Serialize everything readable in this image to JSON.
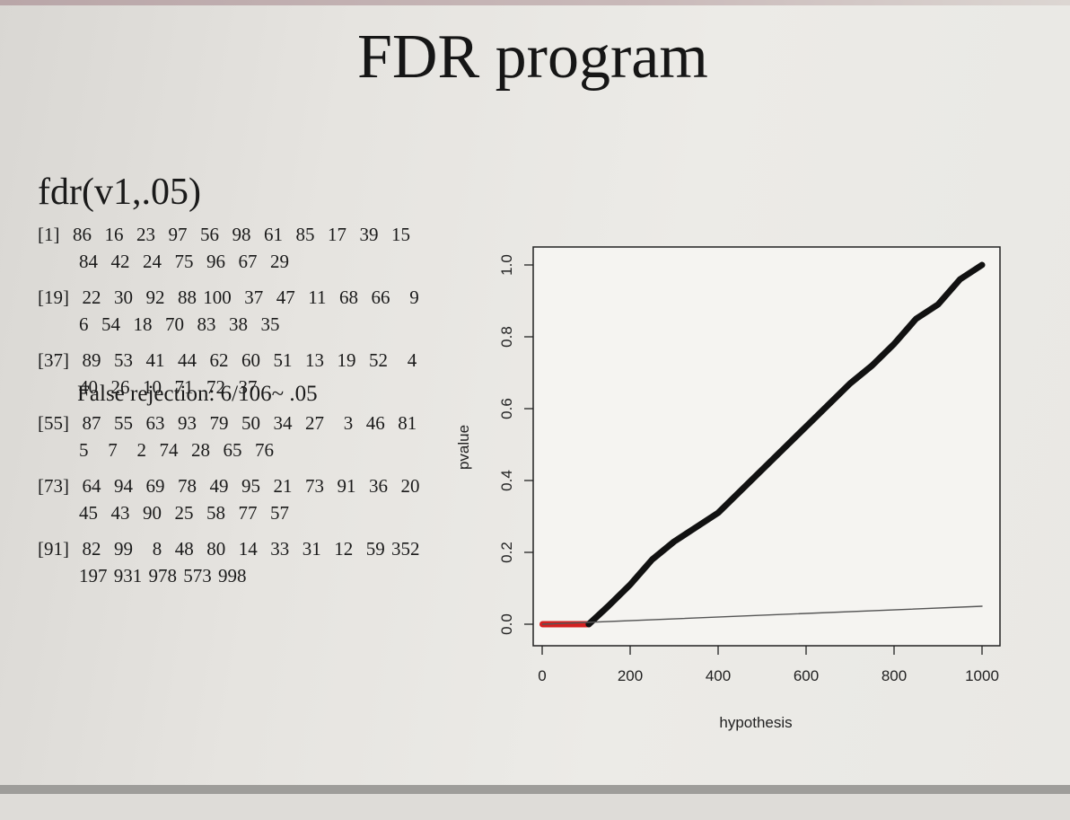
{
  "slide": {
    "title": "FDR program",
    "command": "fdr(v1,.05)",
    "output_rows": [
      {
        "line1": "[1]  86  16  23  97  56  98  61  85  17  39  15",
        "line2": "84  42  24  75  96  67  29"
      },
      {
        "line1": "[19]  22  30  92  88 100  37  47  11  68  66   9",
        "line2": "6  54  18  70  83  38  35"
      },
      {
        "line1": "[37]  89  53  41  44  62  60  51  13  19  52   4",
        "line2": "40  26  10  71  72  37"
      },
      {
        "line1": "[55]  87  55  63  93  79  50  34  27   3  46  81",
        "line2": "5   7   2  74  28  65  76"
      },
      {
        "line1": "[73]  64  94  69  78  49  95  21  73  91  36  20",
        "line2": "45  43  90  25  58  77  57"
      },
      {
        "line1": "[91]  82  99   8  48  80  14  33  31  12  59 352",
        "line2": "197 931 978 573 998"
      }
    ],
    "false_rejection": "False rejection: 6/106~ .05"
  },
  "colors": {
    "background": "#e8e6e2",
    "text": "#1a1a1a",
    "rejected_series": "#d42020",
    "pvalue_series": "#111111",
    "threshold_line": "#555555"
  },
  "chart_data": {
    "type": "scatter",
    "xlabel": "hypothesis",
    "ylabel": "pvalue",
    "xlim": [
      0,
      1000
    ],
    "ylim": [
      0,
      1
    ],
    "x_ticks": [
      "0",
      "200",
      "400",
      "600",
      "800",
      "1000"
    ],
    "y_ticks": [
      "0.0",
      "0.2",
      "0.4",
      "0.6",
      "0.8",
      "1.0"
    ],
    "series": [
      {
        "role": "rejected",
        "color": "#d42020",
        "x": [
          1,
          106
        ],
        "y": [
          0.0,
          0.0
        ]
      },
      {
        "role": "sorted-pvalues",
        "color": "#111111",
        "x": [
          106,
          150,
          200,
          250,
          300,
          350,
          400,
          450,
          500,
          550,
          600,
          650,
          700,
          750,
          800,
          850,
          900,
          950,
          1000
        ],
        "y": [
          0.0,
          0.05,
          0.11,
          0.18,
          0.23,
          0.27,
          0.31,
          0.37,
          0.43,
          0.49,
          0.55,
          0.61,
          0.67,
          0.72,
          0.78,
          0.85,
          0.89,
          0.96,
          1.0
        ]
      },
      {
        "role": "fdr-threshold",
        "color": "#555555",
        "x": [
          1,
          1000
        ],
        "y": [
          0.0,
          0.05
        ]
      }
    ]
  }
}
